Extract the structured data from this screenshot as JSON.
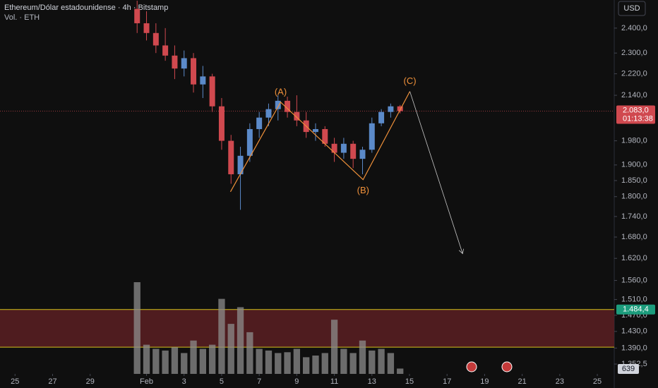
{
  "chart_data": {
    "type": "candlestick",
    "title": "Ethereum/Dólar estadounidense · 4h · Bitstamp",
    "subtitle": "Vol. · ETH",
    "currency": "USD",
    "log_scale": true,
    "up_color": "#5b8ac9",
    "down_color": "#d0494f",
    "volume_color": "#8c8c8c",
    "x": [
      6.5,
      7,
      7.5,
      8,
      8.5,
      9,
      9.5,
      10,
      10.5,
      11,
      11.5,
      12,
      12.5,
      13,
      13.5,
      14,
      14.5,
      15,
      15.5,
      16,
      16.5,
      17,
      17.5,
      18,
      18.5,
      19,
      19.5,
      20,
      20.5
    ],
    "open": [
      2480,
      2420,
      2380,
      2330,
      2290,
      2240,
      2280,
      2180,
      2210,
      2100,
      1980,
      1870,
      1930,
      2020,
      2060,
      2090,
      2120,
      2080,
      2050,
      2010,
      2020,
      1970,
      1940,
      1970,
      1920,
      1950,
      2040,
      2080,
      2100
    ],
    "high": [
      2515,
      2470,
      2420,
      2400,
      2330,
      2310,
      2300,
      2250,
      2220,
      2130,
      2000,
      1960,
      2040,
      2080,
      2110,
      2140,
      2135,
      2140,
      2080,
      2040,
      2030,
      1990,
      1990,
      1980,
      1960,
      2060,
      2090,
      2110,
      2105
    ],
    "low": [
      2380,
      2350,
      2300,
      2270,
      2200,
      2210,
      2150,
      2130,
      2080,
      1950,
      1840,
      1760,
      1910,
      1990,
      2030,
      2050,
      2060,
      2030,
      1990,
      1980,
      1960,
      1910,
      1920,
      1890,
      1870,
      1940,
      2030,
      2060,
      2075
    ],
    "close": [
      2420,
      2380,
      2330,
      2290,
      2240,
      2280,
      2180,
      2210,
      2100,
      1980,
      1870,
      1930,
      2020,
      2060,
      2090,
      2120,
      2080,
      2050,
      2010,
      2020,
      1970,
      1940,
      1970,
      1920,
      1950,
      2040,
      2080,
      2100,
      2083
    ],
    "volume": [
      11000,
      3500,
      3000,
      2800,
      3200,
      2500,
      4000,
      3000,
      3500,
      9000,
      6000,
      8000,
      5000,
      3000,
      2800,
      2500,
      2600,
      3000,
      2000,
      2200,
      2500,
      6500,
      3000,
      2500,
      4000,
      2800,
      3000,
      2500,
      639
    ],
    "xlim": [
      -0.8,
      31.9
    ],
    "ylim": [
      1330,
      2518
    ],
    "xticks": [
      {
        "value": 0,
        "label": "25"
      },
      {
        "value": 2,
        "label": "27"
      },
      {
        "value": 4,
        "label": "29"
      },
      {
        "value": 7,
        "label": "Feb"
      },
      {
        "value": 9,
        "label": "3"
      },
      {
        "value": 11,
        "label": "5"
      },
      {
        "value": 13,
        "label": "7"
      },
      {
        "value": 15,
        "label": "9"
      },
      {
        "value": 17,
        "label": "11"
      },
      {
        "value": 19,
        "label": "13"
      },
      {
        "value": 21,
        "label": "15"
      },
      {
        "value": 23,
        "label": "17"
      },
      {
        "value": 25,
        "label": "19"
      },
      {
        "value": 27,
        "label": "21"
      },
      {
        "value": 29,
        "label": "23"
      },
      {
        "value": 31,
        "label": "25"
      }
    ],
    "yticks": [
      {
        "value": 2400,
        "label": "2.400,0"
      },
      {
        "value": 2300,
        "label": "2.300,0"
      },
      {
        "value": 2220,
        "label": "2.220,0"
      },
      {
        "value": 2140,
        "label": "2.140,0"
      },
      {
        "value": 1980,
        "label": "1.980,0"
      },
      {
        "value": 1900,
        "label": "1.900,0"
      },
      {
        "value": 1850,
        "label": "1.850,0"
      },
      {
        "value": 1800,
        "label": "1.800,0"
      },
      {
        "value": 1740,
        "label": "1.740,0"
      },
      {
        "value": 1680,
        "label": "1.680,0"
      },
      {
        "value": 1620,
        "label": "1.620,0"
      },
      {
        "value": 1560,
        "label": "1.560,0"
      },
      {
        "value": 1510,
        "label": "1.510,0"
      },
      {
        "value": 1470,
        "label": "1.470,0"
      },
      {
        "value": 1430,
        "label": "1.430,0"
      },
      {
        "value": 1390,
        "label": "1.390,0"
      },
      {
        "value": 1352.5,
        "label": "1.352,5"
      }
    ],
    "last_price": {
      "value": 2083,
      "label": "2.083,0"
    },
    "countdown": "01:13:38",
    "zone": {
      "top": {
        "value": 1484.4,
        "label": "1.484,4"
      },
      "bottom": 1392,
      "color": "#5a1f22",
      "border_color": "#d4c21c"
    },
    "wave": {
      "x": [
        11.47,
        14.14,
        18.53,
        21.02
      ],
      "y": [
        1815,
        2115,
        1853,
        2154
      ],
      "labels": [
        "(A)",
        "(B)",
        "(C)"
      ],
      "label_points": [
        1,
        2,
        3
      ],
      "color": "#f0913a"
    },
    "projection": {
      "x": [
        21.02,
        23.83
      ],
      "y": [
        2154,
        1633
      ],
      "color": "#c8c8c8"
    }
  }
}
